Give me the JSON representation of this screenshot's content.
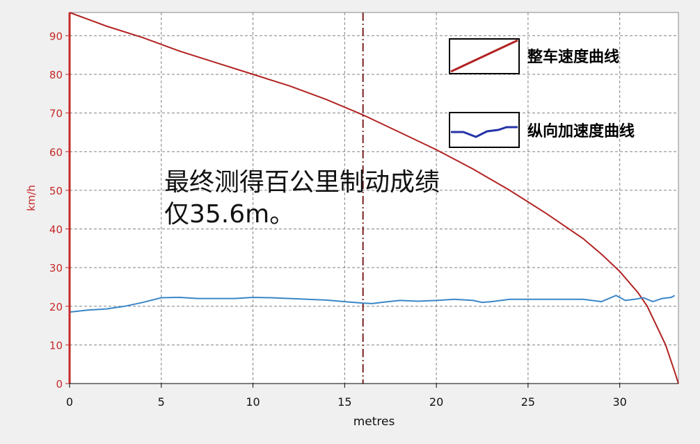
{
  "chart_data": {
    "type": "line",
    "xlabel": "metres",
    "ylabel": "km/h",
    "xlim": [
      0,
      33.2
    ],
    "ylim": [
      0,
      96
    ],
    "xticks": [
      0,
      5,
      10,
      15,
      20,
      25,
      30
    ],
    "yticks": [
      0,
      10,
      20,
      30,
      40,
      50,
      60,
      70,
      80,
      90
    ],
    "grid": true,
    "marker_line_x": 16,
    "legend_position": "top-right",
    "series": [
      {
        "name": "整车速度曲线",
        "color": "#b22222",
        "points": [
          [
            0,
            96
          ],
          [
            2,
            92.5
          ],
          [
            4,
            89.5
          ],
          [
            6,
            86
          ],
          [
            8,
            83
          ],
          [
            10,
            80
          ],
          [
            12,
            77
          ],
          [
            14,
            73.5
          ],
          [
            16,
            69.5
          ],
          [
            18,
            65
          ],
          [
            20,
            60.5
          ],
          [
            22,
            55.5
          ],
          [
            24,
            50
          ],
          [
            26,
            44
          ],
          [
            28,
            37.5
          ],
          [
            29,
            33.5
          ],
          [
            30,
            29
          ],
          [
            31,
            23.5
          ],
          [
            31.5,
            20
          ],
          [
            32,
            15
          ],
          [
            32.5,
            10
          ],
          [
            33,
            3
          ],
          [
            33.2,
            0
          ]
        ]
      },
      {
        "name": "纵向加速度曲线",
        "color": "#3a86c8",
        "points": [
          [
            0,
            18.5
          ],
          [
            1,
            19
          ],
          [
            2,
            19.3
          ],
          [
            3,
            20
          ],
          [
            4,
            21
          ],
          [
            5,
            22.2
          ],
          [
            6,
            22.3
          ],
          [
            7,
            22
          ],
          [
            8,
            22
          ],
          [
            9,
            22
          ],
          [
            10,
            22.3
          ],
          [
            11,
            22.2
          ],
          [
            12,
            22
          ],
          [
            13,
            21.8
          ],
          [
            14,
            21.6
          ],
          [
            15,
            21.2
          ],
          [
            16,
            20.8
          ],
          [
            16.5,
            20.7
          ],
          [
            17,
            21
          ],
          [
            18,
            21.5
          ],
          [
            19,
            21.3
          ],
          [
            20,
            21.5
          ],
          [
            21,
            21.8
          ],
          [
            22,
            21.5
          ],
          [
            22.5,
            21
          ],
          [
            23,
            21.2
          ],
          [
            24,
            21.8
          ],
          [
            25,
            21.8
          ],
          [
            26,
            21.8
          ],
          [
            27,
            21.8
          ],
          [
            28,
            21.8
          ],
          [
            29,
            21.2
          ],
          [
            29.8,
            22.8
          ],
          [
            30.3,
            21.5
          ],
          [
            30.8,
            21.8
          ],
          [
            31.3,
            22.2
          ],
          [
            31.8,
            21.2
          ],
          [
            32.3,
            22
          ],
          [
            32.8,
            22.3
          ],
          [
            33,
            22.8
          ]
        ]
      }
    ],
    "annotation": [
      "最终测得百公里制动成绩",
      "仅35.6m。"
    ]
  }
}
